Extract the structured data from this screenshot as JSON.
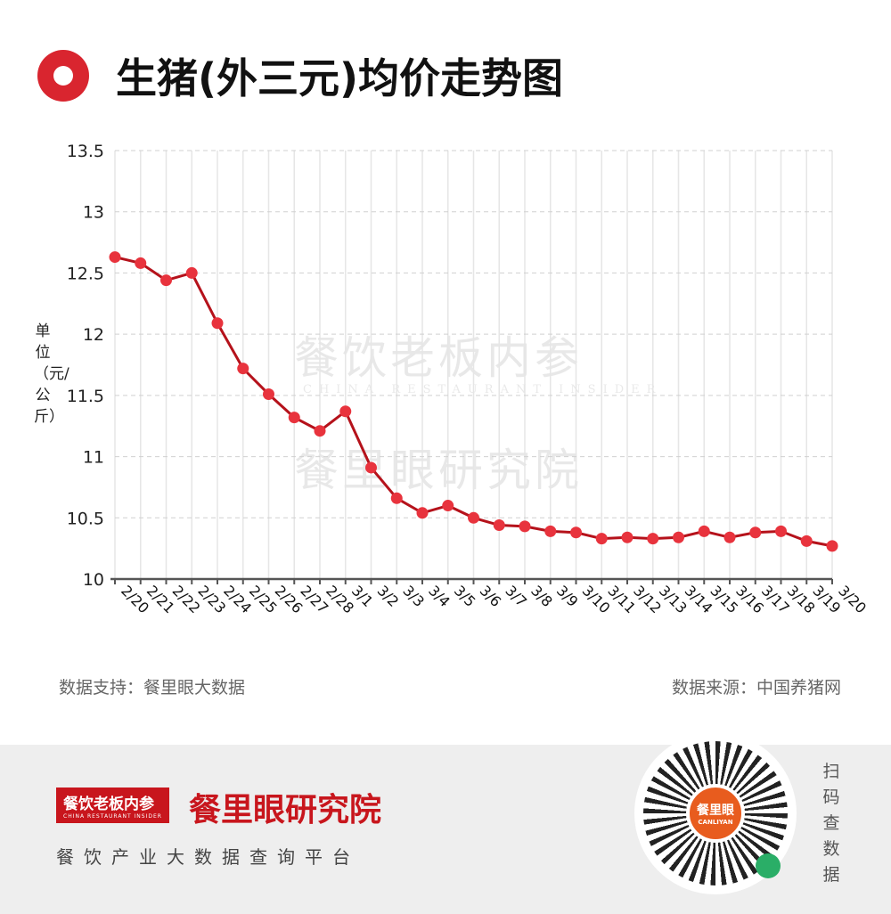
{
  "title": "生猪(外三元)均价走势图",
  "y_axis_label": "单位（元/公斤）",
  "footer": {
    "left": "数据支持：餐里眼大数据",
    "right": "数据来源：中国养猪网"
  },
  "watermark": {
    "line1": "餐饮老板内参",
    "line2": "CHINA RESTAURANT INSIDER",
    "line3": "餐里眼研究院"
  },
  "bottom": {
    "logo": "餐饮老板内参",
    "logo_sub": "CHINA RESTAURANT INSIDER",
    "brand": "餐里眼研究院",
    "slogan": "餐饮产业大数据查询平台",
    "qr_label": "餐里眼",
    "qr_sub": "CANLIYAN",
    "scan": "扫码查数据"
  },
  "colors": {
    "line": "#b5121b",
    "point": "#e8333d",
    "accent": "#d9252f"
  },
  "chart_data": {
    "type": "line",
    "title": "生猪(外三元)均价走势图",
    "ylabel": "单位（元/公斤）",
    "ylim": [
      10,
      13.5
    ],
    "yticks": [
      10,
      10.5,
      11,
      11.5,
      12,
      12.5,
      13,
      13.5
    ],
    "grid": true,
    "x": [
      "2/20",
      "2/21",
      "2/22",
      "2/23",
      "2/24",
      "2/25",
      "2/26",
      "2/27",
      "2/28",
      "3/1",
      "3/2",
      "3/3",
      "3/4",
      "3/5",
      "3/6",
      "3/7",
      "3/8",
      "3/9",
      "3/10",
      "3/11",
      "3/12",
      "3/13",
      "3/14",
      "3/15",
      "3/16",
      "3/17",
      "3/18",
      "3/19",
      "3/20"
    ],
    "values": [
      12.63,
      12.58,
      12.44,
      12.5,
      12.09,
      11.72,
      11.51,
      11.32,
      11.21,
      11.37,
      10.91,
      10.66,
      10.54,
      10.6,
      10.5,
      10.44,
      10.43,
      10.39,
      10.38,
      10.33,
      10.34,
      10.33,
      10.34,
      10.39,
      10.34,
      10.38,
      10.39,
      10.31,
      10.27
    ]
  }
}
